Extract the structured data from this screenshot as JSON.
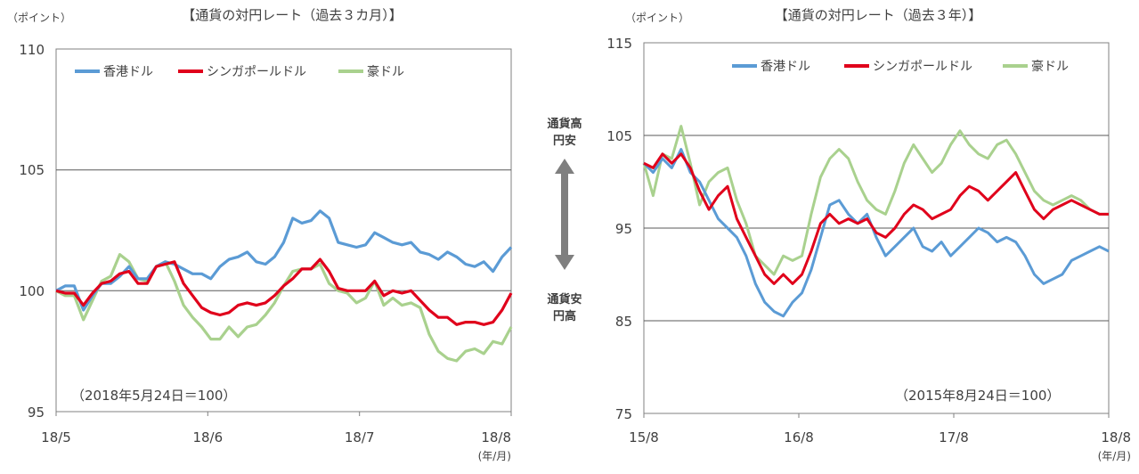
{
  "colors": {
    "hkd": "#5b9bd5",
    "sgd": "#e0001b",
    "aud": "#a9d18e",
    "grid": "#595959",
    "axis": "#808080",
    "arrow": "#7f7f7f"
  },
  "middle": {
    "up_label_1": "通貨高",
    "up_label_2": "円安",
    "down_label_1": "通貨安",
    "down_label_2": "円高"
  },
  "chart_data": [
    {
      "type": "line",
      "title": "【通貨の対円レート（過去３カ月）】",
      "ylabel": "（ポイント）",
      "xunit": "(年/月)",
      "note": "（2018年5月24日＝100）",
      "ylim": [
        95,
        110
      ],
      "yticks": [
        "110",
        "105",
        "100",
        "95"
      ],
      "xticks": [
        "18/5",
        "18/6",
        "18/7",
        "18/8"
      ],
      "grid": "horizontal",
      "legend_position": "top-left",
      "series": [
        {
          "name": "香港ドル",
          "color_key": "hkd",
          "values": [
            100.0,
            100.2,
            100.2,
            99.2,
            99.8,
            100.3,
            100.3,
            100.6,
            101.0,
            100.5,
            100.5,
            101.0,
            101.2,
            101.1,
            100.9,
            100.7,
            100.7,
            100.5,
            101.0,
            101.3,
            101.4,
            101.6,
            101.2,
            101.1,
            101.4,
            102.0,
            103.0,
            102.8,
            102.9,
            103.3,
            103.0,
            102.0,
            101.9,
            101.8,
            101.9,
            102.4,
            102.2,
            102.0,
            101.9,
            102.0,
            101.6,
            101.5,
            101.3,
            101.6,
            101.4,
            101.1,
            101.0,
            101.2,
            100.8,
            101.4,
            101.8
          ]
        },
        {
          "name": "シンガポールドル",
          "color_key": "sgd",
          "values": [
            100.0,
            99.9,
            99.9,
            99.4,
            99.9,
            100.3,
            100.4,
            100.7,
            100.8,
            100.3,
            100.3,
            101.0,
            101.1,
            101.2,
            100.3,
            99.8,
            99.3,
            99.1,
            99.0,
            99.1,
            99.4,
            99.5,
            99.4,
            99.5,
            99.8,
            100.2,
            100.5,
            100.9,
            100.9,
            101.3,
            100.8,
            100.1,
            100.0,
            100.0,
            100.0,
            100.4,
            99.8,
            100.0,
            99.9,
            100.0,
            99.6,
            99.2,
            98.9,
            98.9,
            98.6,
            98.7,
            98.7,
            98.6,
            98.7,
            99.2,
            99.9
          ]
        },
        {
          "name": "豪ドル",
          "color_key": "aud",
          "values": [
            100.0,
            99.8,
            99.8,
            98.8,
            99.6,
            100.4,
            100.6,
            101.5,
            101.2,
            100.5,
            100.4,
            101.0,
            101.2,
            100.4,
            99.4,
            98.9,
            98.5,
            98.0,
            98.0,
            98.5,
            98.1,
            98.5,
            98.6,
            99.0,
            99.5,
            100.2,
            100.8,
            100.9,
            100.9,
            101.1,
            100.3,
            100.0,
            99.9,
            99.5,
            99.7,
            100.4,
            99.4,
            99.7,
            99.4,
            99.5,
            99.3,
            98.2,
            97.5,
            97.2,
            97.1,
            97.5,
            97.6,
            97.4,
            97.9,
            97.8,
            98.5
          ]
        }
      ]
    },
    {
      "type": "line",
      "title": "【通貨の対円レート（過去３年）】",
      "ylabel": "（ポイント）",
      "xunit": "(年/月)",
      "note": "（2015年8月24日＝100）",
      "ylim": [
        75,
        115
      ],
      "yticks": [
        "115",
        "105",
        "95",
        "85",
        "75"
      ],
      "xticks": [
        "15/8",
        "16/8",
        "17/8",
        "18/8"
      ],
      "grid": "horizontal",
      "legend_position": "top-center",
      "series": [
        {
          "name": "香港ドル",
          "color_key": "hkd",
          "values": [
            102.0,
            101.0,
            102.5,
            101.5,
            103.5,
            101.0,
            100.0,
            98.0,
            96.0,
            95.0,
            94.0,
            92.0,
            89.0,
            87.0,
            86.0,
            85.5,
            87.0,
            88.0,
            90.5,
            94.0,
            97.5,
            98.0,
            96.5,
            95.5,
            96.5,
            94.0,
            92.0,
            93.0,
            94.0,
            95.0,
            93.0,
            92.5,
            93.5,
            92.0,
            93.0,
            94.0,
            95.0,
            94.5,
            93.5,
            94.0,
            93.5,
            92.0,
            90.0,
            89.0,
            89.5,
            90.0,
            91.5,
            92.0,
            92.5,
            93.0,
            92.5
          ]
        },
        {
          "name": "シンガポールドル",
          "color_key": "sgd",
          "values": [
            102.0,
            101.5,
            103.0,
            102.0,
            103.0,
            101.5,
            99.0,
            97.0,
            98.5,
            99.5,
            96.0,
            94.0,
            92.0,
            90.0,
            89.0,
            90.0,
            89.0,
            90.0,
            92.5,
            95.5,
            96.5,
            95.5,
            96.0,
            95.5,
            96.0,
            94.5,
            94.0,
            95.0,
            96.5,
            97.5,
            97.0,
            96.0,
            96.5,
            97.0,
            98.5,
            99.5,
            99.0,
            98.0,
            99.0,
            100.0,
            101.0,
            99.0,
            97.0,
            96.0,
            97.0,
            97.5,
            98.0,
            97.5,
            97.0,
            96.5,
            96.5
          ]
        },
        {
          "name": "豪ドル",
          "color_key": "aud",
          "values": [
            102.0,
            98.5,
            103.0,
            102.5,
            106.0,
            102.0,
            97.5,
            100.0,
            101.0,
            101.5,
            98.0,
            95.5,
            92.0,
            91.0,
            90.0,
            92.0,
            91.5,
            92.0,
            96.5,
            100.5,
            102.5,
            103.5,
            102.5,
            100.0,
            98.0,
            97.0,
            96.5,
            99.0,
            102.0,
            104.0,
            102.5,
            101.0,
            102.0,
            104.0,
            105.5,
            104.0,
            103.0,
            102.5,
            104.0,
            104.5,
            103.0,
            101.0,
            99.0,
            98.0,
            97.5,
            98.0,
            98.5,
            98.0,
            97.0,
            96.5,
            96.5
          ]
        }
      ]
    }
  ]
}
